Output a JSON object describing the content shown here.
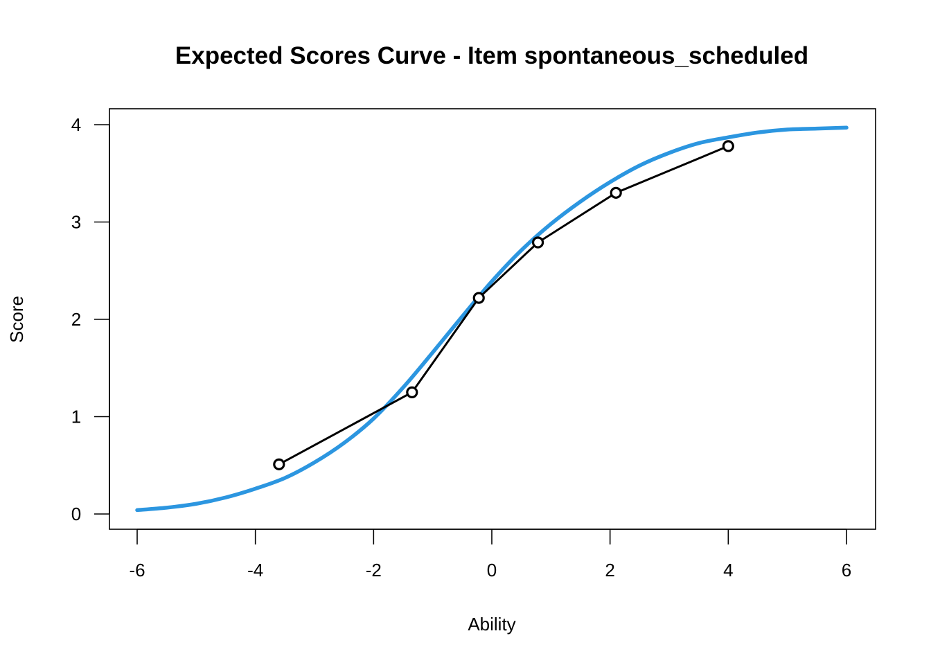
{
  "chart_data": {
    "type": "line",
    "title": "Expected Scores Curve - Item  spontaneous_scheduled",
    "xlabel": "Ability",
    "ylabel": "Score",
    "xlim": [
      -6,
      6
    ],
    "ylim": [
      0,
      4
    ],
    "x_ticks": [
      -6,
      -4,
      -2,
      0,
      2,
      4,
      6
    ],
    "y_ticks": [
      0,
      1,
      2,
      3,
      4
    ],
    "grid": false,
    "legend": "none",
    "series": [
      {
        "kind": "curve",
        "color": "#2C96E0",
        "x": [
          -6.0,
          -5.5,
          -5.0,
          -4.5,
          -4.0,
          -3.5,
          -3.0,
          -2.5,
          -2.0,
          -1.5,
          -1.0,
          -0.5,
          0.0,
          0.5,
          1.0,
          1.5,
          2.0,
          2.5,
          3.0,
          3.5,
          4.0,
          4.5,
          5.0,
          5.5,
          6.0
        ],
        "y": [
          0.04,
          0.065,
          0.105,
          0.17,
          0.26,
          0.37,
          0.53,
          0.73,
          0.98,
          1.3,
          1.66,
          2.03,
          2.39,
          2.71,
          2.98,
          3.21,
          3.41,
          3.58,
          3.71,
          3.81,
          3.87,
          3.92,
          3.95,
          3.96,
          3.97
        ]
      },
      {
        "kind": "observed",
        "color": "#000000",
        "x": [
          -3.6,
          -1.35,
          -0.22,
          0.78,
          2.1,
          4.0
        ],
        "y": [
          0.51,
          1.25,
          2.22,
          2.79,
          3.3,
          3.78
        ]
      }
    ]
  }
}
